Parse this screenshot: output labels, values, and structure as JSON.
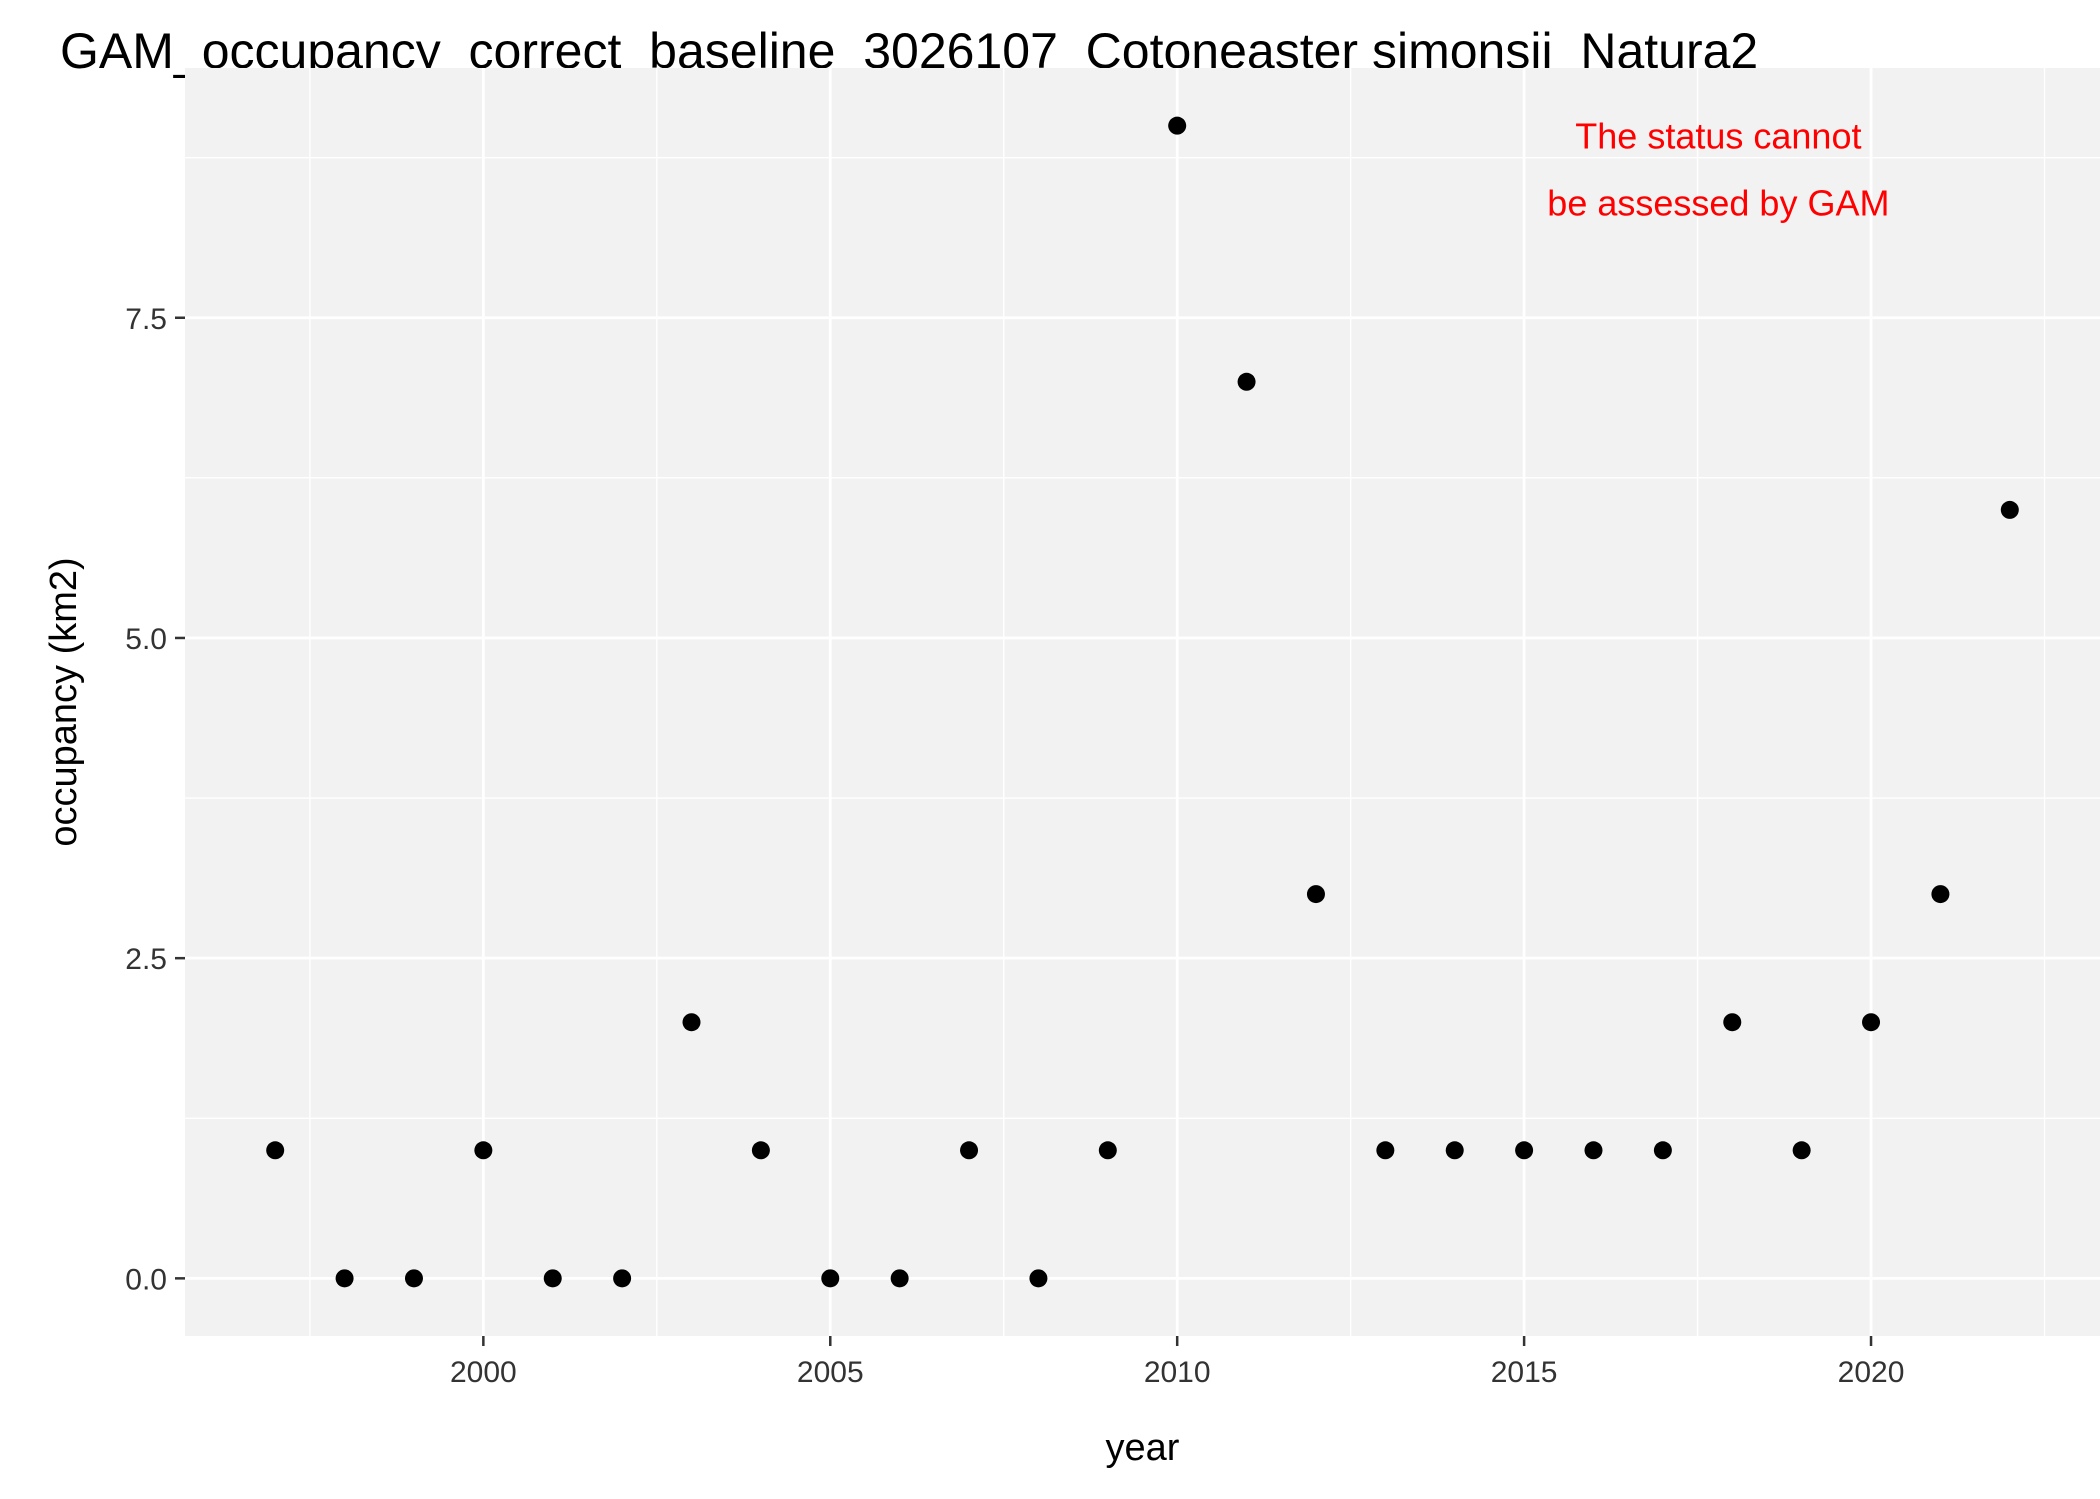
{
  "chart_data": {
    "type": "scatter",
    "title": "GAM_occupancy_correct_baseline_3026107_Cotoneaster simonsii_Natura2",
    "xlabel": "year",
    "ylabel": "occupancy (km2)",
    "xlim": [
      1995.7,
      2023.3
    ],
    "ylim": [
      -0.45,
      9.45
    ],
    "x_ticks": [
      2000,
      2005,
      2010,
      2015,
      2020
    ],
    "x_tick_labels": [
      "2000",
      "2005",
      "2010",
      "2015",
      "2020"
    ],
    "y_ticks": [
      0,
      2.5,
      5,
      7.5
    ],
    "y_tick_labels": [
      "0.0",
      "2.5",
      "5.0",
      "7.5"
    ],
    "grid": true,
    "points": [
      {
        "x": 1997,
        "y": 1
      },
      {
        "x": 1998,
        "y": 0
      },
      {
        "x": 1999,
        "y": 0
      },
      {
        "x": 2000,
        "y": 1
      },
      {
        "x": 2001,
        "y": 0
      },
      {
        "x": 2002,
        "y": 0
      },
      {
        "x": 2003,
        "y": 2
      },
      {
        "x": 2004,
        "y": 1
      },
      {
        "x": 2005,
        "y": 0
      },
      {
        "x": 2006,
        "y": 0
      },
      {
        "x": 2007,
        "y": 1
      },
      {
        "x": 2008,
        "y": 0
      },
      {
        "x": 2009,
        "y": 1
      },
      {
        "x": 2010,
        "y": 9
      },
      {
        "x": 2011,
        "y": 7
      },
      {
        "x": 2012,
        "y": 3
      },
      {
        "x": 2013,
        "y": 1
      },
      {
        "x": 2014,
        "y": 1
      },
      {
        "x": 2015,
        "y": 1
      },
      {
        "x": 2016,
        "y": 1
      },
      {
        "x": 2017,
        "y": 1
      },
      {
        "x": 2018,
        "y": 2
      },
      {
        "x": 2019,
        "y": 1
      },
      {
        "x": 2020,
        "y": 2
      },
      {
        "x": 2021,
        "y": 3
      },
      {
        "x": 2022,
        "y": 6
      }
    ],
    "annotation": {
      "lines": [
        "The status cannot",
        "be assessed by GAM"
      ],
      "color": "#ff0000"
    },
    "colors": {
      "panel_background": "#f2f2f2",
      "grid": "#ffffff",
      "points": "#000000"
    }
  }
}
